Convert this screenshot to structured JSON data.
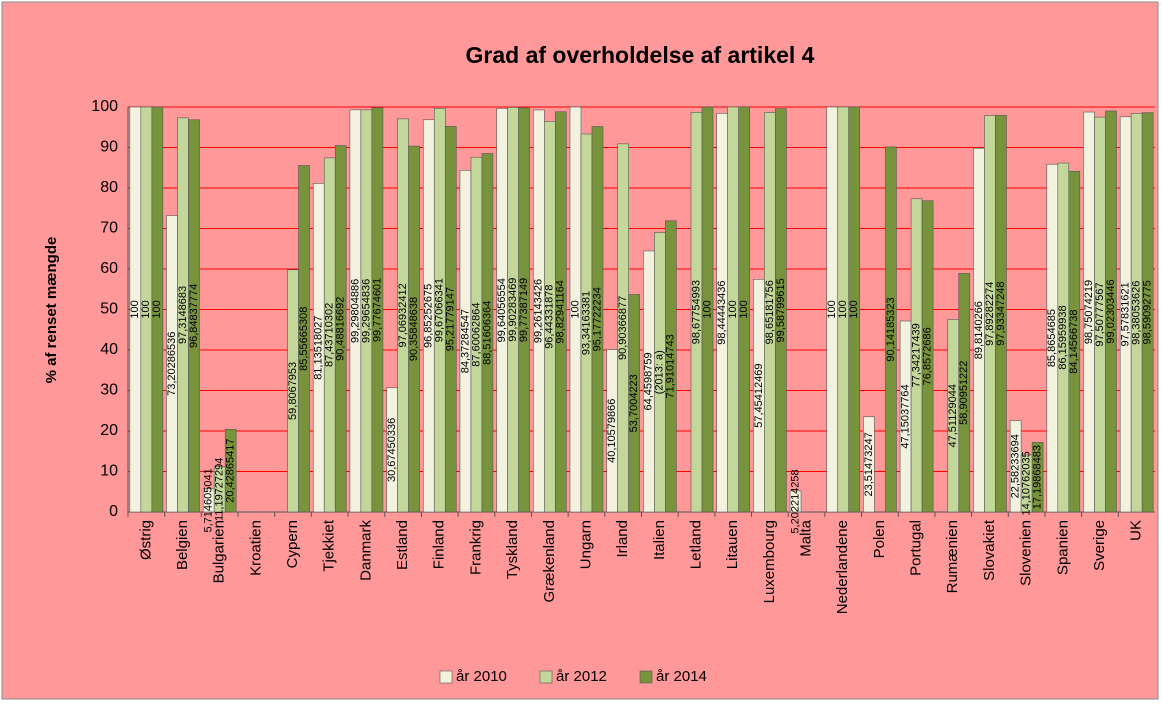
{
  "chart_data": {
    "type": "bar",
    "title": "Grad af overholdelse af artikel 4",
    "ylabel": "% af renset mængde",
    "annotation": "(2013: a)",
    "categories": [
      "Østrig",
      "Belgien",
      "Bulgarien",
      "Kroatien",
      "Cypern",
      "Tjekkiet",
      "Danmark",
      "Estland",
      "Finland",
      "Frankrig",
      "Tyskland",
      "Grækenland",
      "Ungarn",
      "Irland",
      "Italien",
      "Letland",
      "Litauen",
      "Luxembourg",
      "Malta",
      "Nederlandene",
      "Polen",
      "Portugal",
      "Rumænien",
      "Slovakiet",
      "Slovenien",
      "Spanien",
      "Sverige",
      "UK"
    ],
    "series": [
      {
        "name": "år 2010",
        "color": "#f2f2df",
        "values": [
          100,
          73.20286536,
          5.714605041,
          null,
          null,
          81.13518027,
          99.29804886,
          30.67450336,
          96.85252675,
          84.37284547,
          99.64056554,
          99.26143426,
          100,
          40.10579866,
          64.4598759,
          null,
          98.44443436,
          57.45412469,
          5.202214258,
          100,
          23.51473247,
          47.15037764,
          null,
          89.8140266,
          22.58233694,
          85.8654685,
          98.75074219,
          97.57831621
        ],
        "value_labels": [
          "100",
          "73,20286536",
          "5,714605041",
          null,
          null,
          "81,13518027",
          "99,29804886",
          "30,67450336",
          "96,85252675",
          "84,37284547",
          "99,64056554",
          "99,26143426",
          "100",
          "40,10579866",
          "64,4598759",
          null,
          "98,44443436",
          "57,45412469",
          "5,202214258",
          "100",
          "23,51473247",
          "47,15037764",
          null,
          "89,8140266",
          "22,58233694",
          "85,8654685",
          "98,75074219",
          "97,57831621"
        ]
      },
      {
        "name": "år 2012",
        "color": "#c4d79b",
        "values": [
          100,
          97.3148683,
          11.19727294,
          null,
          59.8067953,
          87.43710302,
          99.29654836,
          97.06932412,
          99.67066341,
          87.60062864,
          99.90283469,
          96.44331878,
          93.34163381,
          90.90366877,
          69,
          98.67754993,
          100,
          98.65181756,
          null,
          100,
          null,
          77.34217439,
          47.51129044,
          97.89282274,
          14.10762035,
          86.15959938,
          97.50777567,
          98.38053626
        ],
        "value_labels": [
          "100",
          "97,3148683",
          "11,19727294",
          null,
          "59,8067953",
          "87,43710302",
          "99,29654836",
          "97,06932412",
          "99,67066341",
          "87,60062864",
          "99,90283469",
          "96,44331878",
          "93,34163381",
          "90,90366877",
          null,
          "98,67754993",
          "100",
          "98,65181756",
          null,
          "100",
          null,
          "77,34217439",
          "47,51129044",
          "97,89282274",
          "14,10762035",
          "86,15959938",
          "97,50777567",
          "98,38053626"
        ]
      },
      {
        "name": "år 2014",
        "color": "#77933c",
        "values": [
          100,
          96.84837774,
          20.42865417,
          null,
          85.55665308,
          90.48816692,
          99.77674601,
          90.35848638,
          95.21779147,
          88.51606364,
          99.77387149,
          98.82941164,
          95.17722234,
          53.7004223,
          71.91014743,
          100,
          100,
          99.58799615,
          null,
          100,
          90.14185323,
          76.8572686,
          58.90951222,
          97.93347248,
          17.19868483,
          84.14566738,
          99.02303446,
          98.59092775
        ],
        "value_labels": [
          "100",
          "96,84837774",
          "20,42865417",
          null,
          "85,55665308",
          "90,48816692",
          "99,77674601",
          "90,35848638",
          "95,21779147",
          "88,51606364",
          "99,77387149",
          "98,82941164",
          "95,17722234",
          "53,7004223",
          "71,91014743",
          "100",
          "100",
          "99,58799615",
          null,
          "100",
          "90,14185323",
          "76,8572686",
          "58,90951222",
          "97,93347248",
          "17,19868483",
          "84,14566738",
          "99,02303446",
          "98,59092775"
        ]
      }
    ],
    "ylim": [
      0,
      100
    ],
    "yticks": [
      0,
      10,
      20,
      30,
      40,
      50,
      60,
      70,
      80,
      90,
      100
    ],
    "grid": true,
    "legend": "bottom"
  }
}
